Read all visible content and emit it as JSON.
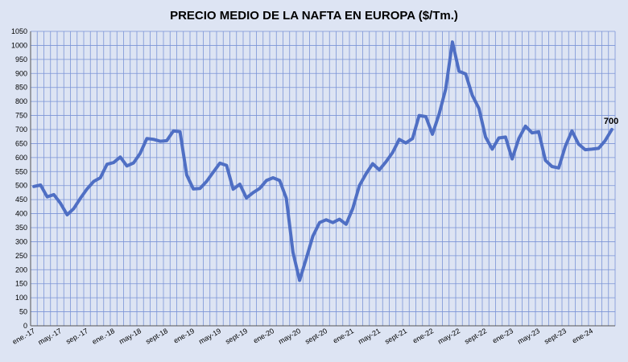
{
  "chart_data": {
    "type": "line",
    "title": "PRECIO MEDIO DE LA NAFTA EN EUROPA ($/Tm.)",
    "xlabel": "",
    "ylabel": "",
    "ylim": [
      0,
      1050
    ],
    "ytick_step": 50,
    "grid": true,
    "legend": "none",
    "line_color": "#4f6fc4",
    "x_tick_labels": [
      "ene.-17",
      "may.-17",
      "sep.-17",
      "ene.-18",
      "may-18",
      "sept-18",
      "ene-19",
      "may-19",
      "sept-19",
      "ene-20",
      "may-20",
      "sept-20",
      "ene-21",
      "may-21",
      "sept-21",
      "ene-22",
      "may-22",
      "sept-22",
      "ene-23",
      "may-23",
      "sept-23",
      "ene-24"
    ],
    "end_label": "700",
    "series": [
      {
        "values": [
          497,
          502,
          460,
          468,
          437,
          396,
          418,
          455,
          488,
          515,
          528,
          576,
          582,
          602,
          570,
          581,
          615,
          668,
          665,
          658,
          660,
          695,
          692,
          538,
          488,
          490,
          515,
          548,
          580,
          572,
          487,
          505,
          456,
          475,
          490,
          518,
          528,
          518,
          455,
          262,
          162,
          240,
          320,
          368,
          378,
          368,
          380,
          362,
          418,
          500,
          542,
          578,
          556,
          585,
          618,
          665,
          652,
          668,
          750,
          746,
          683,
          755,
          845,
          1012,
          908,
          898,
          822,
          775,
          673,
          630,
          670,
          673,
          595,
          668,
          712,
          688,
          692,
          590,
          568,
          563,
          640,
          695,
          648,
          628,
          630,
          633,
          660,
          700
        ]
      }
    ]
  }
}
